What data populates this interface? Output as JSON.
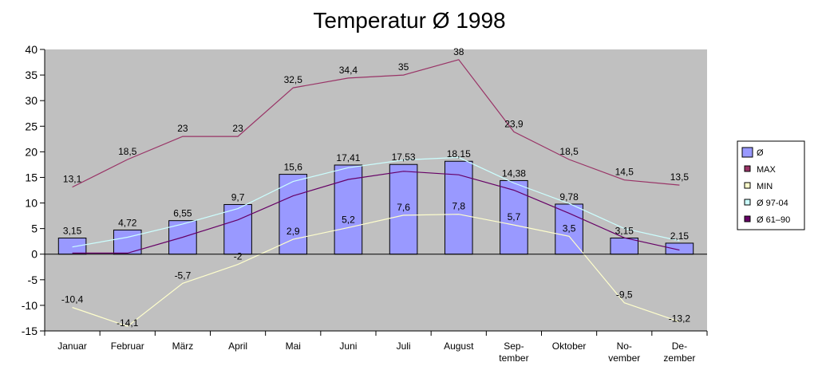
{
  "chart_data": {
    "type": "bar",
    "title": "Temperatur Ø 1998",
    "categories": [
      [
        "Januar"
      ],
      [
        "Februar"
      ],
      [
        "März"
      ],
      [
        "April"
      ],
      [
        "Mai"
      ],
      [
        "Juni"
      ],
      [
        "Juli"
      ],
      [
        "August"
      ],
      [
        "Sep-",
        "tember"
      ],
      [
        "Oktober"
      ],
      [
        "No-",
        "vember"
      ],
      [
        "De-",
        "zember"
      ]
    ],
    "ylim": [
      -15,
      40
    ],
    "yticks": [
      -15,
      -10,
      -5,
      0,
      5,
      10,
      15,
      20,
      25,
      30,
      35,
      40
    ],
    "grid": false,
    "legend_position": "right",
    "series": [
      {
        "name": "Ø",
        "kind": "bar",
        "color": "#9999ff",
        "values": [
          3.15,
          4.72,
          6.55,
          9.7,
          15.6,
          17.41,
          17.53,
          18.15,
          14.38,
          9.78,
          3.15,
          2.15
        ],
        "labels": [
          "3,15",
          "4,72",
          "6,55",
          "9,7",
          "15,6",
          "17,41",
          "17,53",
          "18,15",
          "14,38",
          "9,78",
          "3,15",
          "2,15"
        ]
      },
      {
        "name": "MAX",
        "kind": "line",
        "color": "#993366",
        "values": [
          13.1,
          18.5,
          23,
          23,
          32.5,
          34.4,
          35,
          38,
          23.9,
          18.5,
          14.5,
          13.5
        ],
        "labels": [
          "13,1",
          "18,5",
          "23",
          "23",
          "32,5",
          "34,4",
          "35",
          "38",
          "23,9",
          "18,5",
          "14,5",
          "13,5"
        ]
      },
      {
        "name": "MIN",
        "kind": "line",
        "color": "#ffffcc",
        "values": [
          -10.4,
          -14.1,
          -5.7,
          -2,
          2.9,
          5.2,
          7.6,
          7.8,
          5.7,
          3.5,
          -9.5,
          -13.2
        ],
        "labels": [
          "-10,4",
          "-14,1",
          "-5,7",
          "-2",
          "2,9",
          "5,2",
          "7,6",
          "7,8",
          "5,7",
          "3,5",
          "-9,5",
          "-13,2"
        ]
      },
      {
        "name": "Ø 97-04",
        "kind": "line",
        "color": "#ccffff",
        "values": [
          1.4,
          3.3,
          5.9,
          8.9,
          14.2,
          16.9,
          18.4,
          18.9,
          13.9,
          9.9,
          5.0,
          2.6
        ]
      },
      {
        "name": "Ø 61–90",
        "kind": "line",
        "color": "#660066",
        "values": [
          0.2,
          0.2,
          3.3,
          6.7,
          11.4,
          14.6,
          16.2,
          15.5,
          12.5,
          8.0,
          3.2,
          0.8
        ]
      }
    ],
    "colors": {
      "plot_background": "#c0c0c0",
      "axis": "#000000"
    }
  }
}
